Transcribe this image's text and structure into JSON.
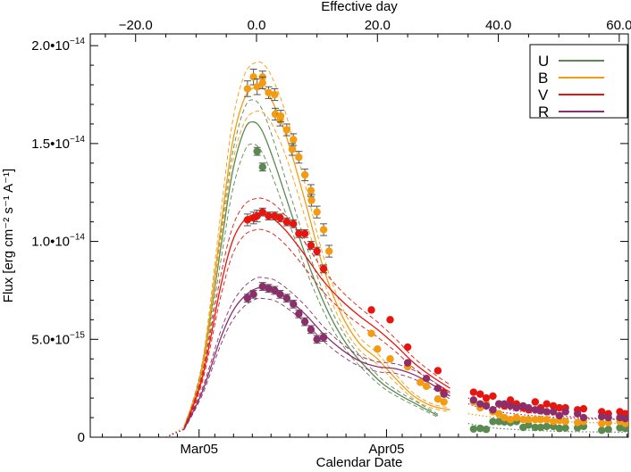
{
  "chart_data": {
    "type": "line",
    "title": "",
    "xlabel": "Calendar Date",
    "ylabel": "Flux [erg cm⁻² s⁻¹ A⁻¹]",
    "top_axis_label": "Effective day",
    "x_units": "effective day",
    "xlim": [
      -27.5,
      61.5
    ],
    "ylim": [
      0,
      2.06e-14
    ],
    "grid": false,
    "legend_position": "top-right",
    "x_ticks_top": [
      "−20.0",
      "0.0",
      "20.0",
      "40.0",
      "60.0"
    ],
    "x_ticks_top_values": [
      -20,
      0,
      20,
      40,
      60
    ],
    "x_ticks_bottom": [
      "Mar05",
      "Apr05"
    ],
    "x_ticks_bottom_values": [
      -9.5,
      21.5
    ],
    "y_ticks": [
      {
        "value": 0,
        "mantissa": "0",
        "exponent": ""
      },
      {
        "value": 5e-15,
        "mantissa": "5.0•10",
        "exponent": "−15"
      },
      {
        "value": 1e-14,
        "mantissa": "1.0•10",
        "exponent": "−14"
      },
      {
        "value": 1.5e-14,
        "mantissa": "1.5•10",
        "exponent": "−14"
      },
      {
        "value": 2e-14,
        "mantissa": "2.0•10",
        "exponent": "−14"
      }
    ],
    "series": [
      {
        "name": "U",
        "color": "#5a8a50",
        "model_x": [
          -15,
          -12,
          -9,
          -6,
          -4,
          -2,
          -0.5,
          1,
          3,
          6,
          9,
          12,
          15,
          18,
          21,
          24,
          27,
          30,
          35,
          40,
          50,
          61
        ],
        "model_y": [
          0.0,
          4e-16,
          3.5e-15,
          9.5e-15,
          1.35e-14,
          1.57e-14,
          1.61e-14,
          1.56e-14,
          1.4e-14,
          1.12e-14,
          8.5e-15,
          6.3e-15,
          4.7e-15,
          3.6e-15,
          2.7e-15,
          2.1e-15,
          1.6e-15,
          1.1e-15,
          7e-16,
          4.5e-16,
          3e-16,
          2.5e-16
        ],
        "x": [
          0.1,
          1.0,
          35.9,
          37.0,
          38.0,
          39.1,
          40.1,
          41.0,
          42.0,
          43.0,
          44.1,
          45.0,
          46.1,
          47.0,
          48.0,
          49.1,
          50.1,
          51.1,
          53.1,
          54.1,
          57.1,
          58.2,
          60.1,
          61.0
        ],
        "y": [
          1.46e-14,
          1.38e-14,
          4.2e-16,
          4.5e-16,
          4e-16,
          8e-16,
          8e-16,
          7.8e-16,
          7.5e-16,
          8e-16,
          5e-16,
          6.2e-16,
          5e-16,
          5e-16,
          5.5e-16,
          5.5e-16,
          4.5e-16,
          4.7e-16,
          4.8e-16,
          5.5e-16,
          3.5e-16,
          4e-16,
          4.8e-16,
          4.5e-16
        ],
        "y_err": [
          2e-16,
          2e-16,
          0,
          0,
          0,
          0,
          0,
          0,
          0,
          0,
          0,
          0,
          0,
          0,
          0,
          0,
          0,
          0,
          0,
          0,
          0,
          0,
          0,
          0
        ]
      },
      {
        "name": "B",
        "color": "#f39c12",
        "model_x": [
          -15,
          -12,
          -9,
          -6,
          -4,
          -2,
          0,
          1.5,
          3,
          5,
          8,
          11,
          14,
          17,
          20,
          23,
          26,
          29,
          32,
          35,
          40,
          50,
          61
        ],
        "model_y": [
          0.0,
          5e-16,
          3.5e-15,
          1.05e-14,
          1.5e-14,
          1.73e-14,
          1.79e-14,
          1.77e-14,
          1.69e-14,
          1.53e-14,
          1.21e-14,
          8.7e-15,
          6.3e-15,
          4.8e-15,
          4e-15,
          3e-15,
          2.1e-15,
          1.6e-15,
          1.4e-15,
          1.2e-15,
          1e-15,
          8e-16,
          7e-16
        ],
        "x": [
          -1.5,
          -0.5,
          0.1,
          1.0,
          1.0,
          2.0,
          3.0,
          3.1,
          3.9,
          4.0,
          5.0,
          5.9,
          6.1,
          7.0,
          8.0,
          9.0,
          9.1,
          10.0,
          11.1,
          12.0,
          19.0,
          20.0,
          22.1,
          25.0,
          27.1,
          28.1,
          30.0,
          31.0,
          35.9,
          37.0,
          38.0,
          39.1,
          40.1,
          41.0,
          42.0,
          43.0,
          44.1,
          45.0,
          46.1,
          47.0,
          48.0,
          49.1,
          50.1,
          51.1,
          53.1,
          54.1,
          57.1,
          58.2,
          60.1,
          61.0
        ],
        "y": [
          1.78e-14,
          1.84e-14,
          1.79e-14,
          1.84e-14,
          1.81e-14,
          1.76e-14,
          1.75e-14,
          1.65e-14,
          1.62e-14,
          1.64e-14,
          1.57e-14,
          1.47e-14,
          1.52e-14,
          1.43e-14,
          1.34e-14,
          1.26e-14,
          1.21e-14,
          1.15e-14,
          1.06e-14,
          9.5e-15,
          5.3e-15,
          4.5e-15,
          4e-15,
          3.6e-15,
          2.8e-15,
          2.6e-15,
          1.95e-15,
          1.8e-15,
          1.8e-15,
          1.5e-15,
          1.7e-15,
          1.3e-15,
          1.2e-15,
          1e-15,
          9e-16,
          1e-15,
          9e-16,
          9e-16,
          9e-16,
          9e-16,
          9e-16,
          8e-16,
          8.5e-16,
          8e-16,
          7.5e-16,
          8e-16,
          7e-16,
          7.5e-16,
          8e-16,
          7e-16
        ],
        "y_err": [
          4e-16,
          4e-16,
          4e-16,
          3e-16,
          3e-16,
          3e-16,
          3e-16,
          3e-16,
          3e-16,
          3e-16,
          3e-16,
          3e-16,
          3e-16,
          3e-16,
          3e-16,
          3e-16,
          3e-16,
          3e-16,
          3e-16,
          3e-16,
          0,
          0,
          0,
          0,
          0,
          0,
          0,
          0,
          0,
          0,
          0,
          0,
          0,
          0,
          0,
          0,
          0,
          0,
          0,
          0,
          0,
          0,
          0,
          0,
          0,
          0,
          0,
          0,
          0,
          0
        ]
      },
      {
        "name": "V",
        "color": "#e8150f",
        "model_x": [
          -15,
          -12,
          -9,
          -6,
          -4,
          -2,
          0,
          1.5,
          3,
          5,
          8,
          11,
          14,
          17,
          20,
          23,
          26,
          29,
          32,
          35,
          40,
          50,
          61
        ],
        "model_y": [
          0.0,
          4e-16,
          3e-15,
          7.6e-15,
          1e-14,
          1.11e-14,
          1.14e-14,
          1.135e-14,
          1.11e-14,
          1.05e-14,
          9.3e-15,
          8e-15,
          7e-15,
          6.2e-15,
          5.5e-15,
          4.7e-15,
          3.8e-15,
          3.1e-15,
          2.5e-15,
          2e-15,
          1.5e-15,
          1.1e-15,
          9e-16
        ],
        "x": [
          -1.5,
          -0.5,
          0.1,
          1.0,
          2.0,
          3.0,
          3.9,
          5.0,
          6.1,
          7.0,
          8.0,
          9.0,
          10.0,
          11.1,
          19.0,
          22.1,
          25.0,
          30.0,
          31.0,
          35.9,
          37.0,
          38.0,
          39.1,
          40.1,
          41.0,
          42.0,
          43.0,
          44.1,
          45.0,
          46.1,
          47.0,
          48.0,
          49.1,
          50.1,
          51.1,
          53.1,
          54.1,
          57.1,
          58.2,
          60.1,
          61.0
        ],
        "y": [
          1.11e-14,
          1.12e-14,
          1.13e-14,
          1.15e-14,
          1.13e-14,
          1.13e-14,
          1.12e-14,
          1.1e-14,
          1.09e-14,
          1.04e-14,
          1.04e-14,
          9.8e-15,
          9.5e-15,
          8.6e-15,
          6.5e-15,
          6e-15,
          4.6e-15,
          3.4e-15,
          2.3e-15,
          2.3e-15,
          2.2e-15,
          2e-15,
          2.1e-15,
          1.7e-15,
          1.6e-15,
          1.9e-15,
          1.7e-15,
          1.5e-15,
          1.4e-15,
          1.8e-15,
          1.5e-15,
          1.7e-15,
          1.6e-15,
          1.5e-15,
          1.5e-15,
          1.4e-15,
          1.45e-15,
          1.3e-15,
          1.2e-15,
          1.3e-15,
          1.2e-15
        ],
        "y_err": [
          3e-16,
          3e-16,
          3e-16,
          2e-16,
          2e-16,
          2e-16,
          2e-16,
          2e-16,
          2e-16,
          2e-16,
          2e-16,
          2e-16,
          2e-16,
          2e-16,
          0,
          0,
          0,
          0,
          0,
          0,
          0,
          0,
          0,
          0,
          0,
          0,
          0,
          0,
          0,
          0,
          0,
          0,
          0,
          0,
          0,
          0,
          0,
          0,
          0,
          0,
          0
        ]
      },
      {
        "name": "R",
        "color": "#8b2e6b",
        "model_x": [
          -15,
          -12,
          -9,
          -6,
          -4,
          -2,
          0,
          1.5,
          3,
          5,
          8,
          11,
          14,
          17,
          20,
          23,
          26,
          29,
          32,
          35,
          40,
          50,
          61
        ],
        "model_y": [
          0.0,
          4e-16,
          2.3e-15,
          5e-15,
          6.4e-15,
          7.2e-15,
          7.6e-15,
          7.6e-15,
          7.5e-15,
          7.1e-15,
          6.3e-15,
          5.3e-15,
          4.5e-15,
          3.9e-15,
          3.6e-15,
          3.5e-15,
          3.2e-15,
          2.7e-15,
          2.1e-15,
          1.7e-15,
          1.3e-15,
          1e-15,
          9e-16
        ],
        "x": [
          -1.5,
          -0.5,
          1.0,
          2.0,
          3.0,
          3.9,
          5.0,
          6.1,
          7.0,
          8.0,
          9.0,
          10.0,
          11.1,
          25.0,
          28.1,
          30.0,
          31.0,
          35.9,
          37.0,
          38.0,
          39.1,
          40.1,
          41.0,
          42.0,
          43.0,
          44.1,
          45.0,
          46.1,
          47.0,
          48.0,
          49.1,
          50.1,
          51.1,
          53.1,
          54.1,
          57.1,
          58.2,
          60.1,
          61.0
        ],
        "y": [
          7.1e-15,
          7.3e-15,
          7.7e-15,
          7.6e-15,
          7.5e-15,
          7.3e-15,
          7.1e-15,
          6.8e-15,
          6.3e-15,
          5.9e-15,
          5.5e-15,
          5e-15,
          5.1e-15,
          3.8e-15,
          3e-15,
          2.5e-15,
          2.2e-15,
          1.9e-15,
          1.7e-15,
          1.6e-15,
          1.4e-15,
          1.7e-15,
          1.7e-15,
          1.6e-15,
          1.5e-15,
          1.6e-15,
          1.5e-15,
          1.4e-15,
          1.35e-15,
          1.3e-15,
          1.3e-15,
          1.1e-15,
          1.3e-15,
          1.2e-15,
          1e-15,
          1.05e-15,
          1e-15,
          1e-15,
          9.5e-16
        ],
        "y_err": [
          2e-16,
          2e-16,
          2e-16,
          2e-16,
          2e-16,
          2e-16,
          2e-16,
          2e-16,
          2e-16,
          2e-16,
          2e-16,
          2e-16,
          2e-16,
          0,
          0,
          0,
          0,
          0,
          0,
          0,
          0,
          0,
          0,
          0,
          0,
          0,
          0,
          0,
          0,
          0,
          0,
          0,
          0,
          0,
          0,
          0,
          0,
          0,
          0
        ]
      }
    ]
  }
}
